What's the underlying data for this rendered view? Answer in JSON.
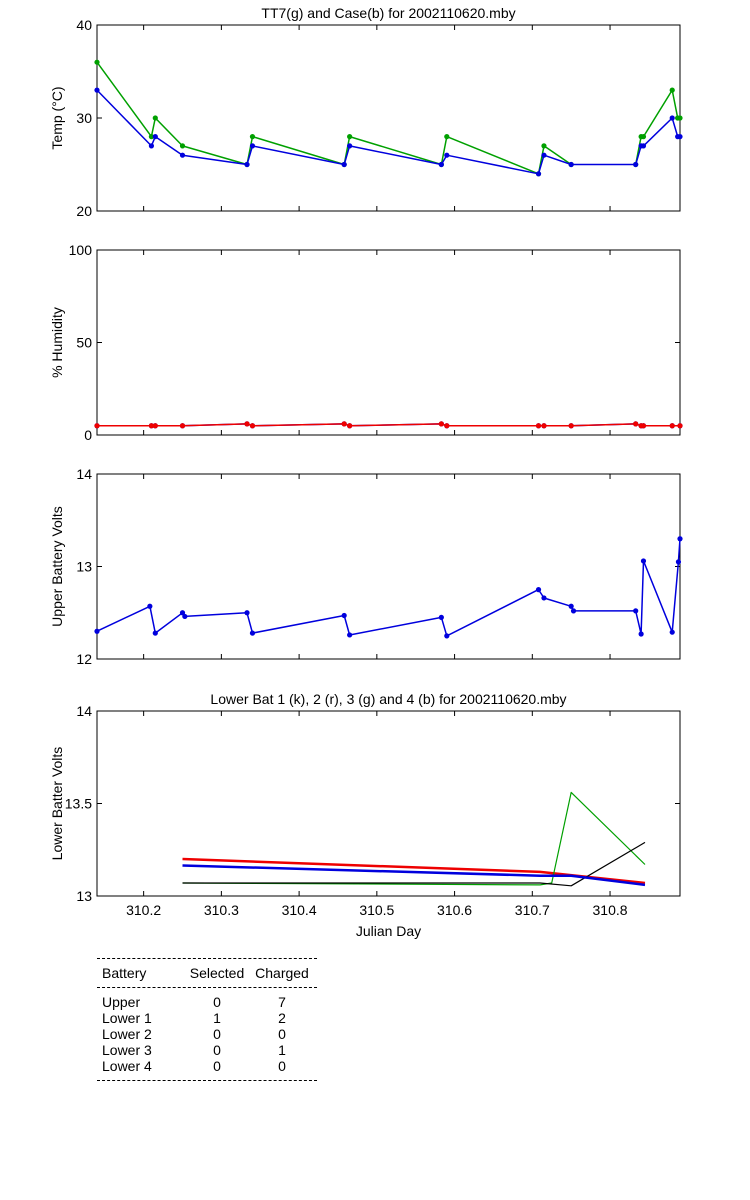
{
  "chart_data": [
    {
      "type": "line",
      "title": "TT7(g) and Case(b) for 2002110620.mby",
      "xlabel": "",
      "ylabel": "Temp  (°C)",
      "xlim": [
        310.14,
        310.89
      ],
      "ylim": [
        20,
        40
      ],
      "yticks": [
        20,
        30,
        40
      ],
      "grid": false,
      "series": [
        {
          "color": "#00a000",
          "markers": true,
          "x": [
            310.14,
            310.21,
            310.215,
            310.25,
            310.333,
            310.34,
            310.458,
            310.465,
            310.583,
            310.59,
            310.708,
            310.715,
            310.75
          ],
          "y": [
            36,
            28,
            30,
            27,
            25,
            28,
            25,
            28,
            25,
            28,
            24,
            27,
            25
          ]
        },
        {
          "color": "#00a000",
          "markers": true,
          "x": [
            310.833,
            310.84,
            310.843,
            310.88,
            310.887,
            310.89
          ],
          "y": [
            25,
            28,
            28,
            33,
            30,
            30
          ]
        },
        {
          "color": "#0000dd",
          "markers": true,
          "x": [
            310.14,
            310.21,
            310.215,
            310.25,
            310.333,
            310.34,
            310.458,
            310.465,
            310.583,
            310.59,
            310.708,
            310.715,
            310.75,
            310.833,
            310.84,
            310.843,
            310.88,
            310.887,
            310.89
          ],
          "y": [
            33,
            27,
            28,
            26,
            25,
            27,
            25,
            27,
            25,
            26,
            24,
            26,
            25,
            25,
            27,
            27,
            30,
            28,
            28
          ]
        }
      ]
    },
    {
      "type": "line",
      "title": "",
      "xlabel": "",
      "ylabel": "% Humidity",
      "xlim": [
        310.14,
        310.89
      ],
      "ylim": [
        0,
        100
      ],
      "yticks": [
        0,
        50,
        100
      ],
      "grid": false,
      "series": [
        {
          "color": "#0000dd",
          "markers": true,
          "x": [
            310.14,
            310.21,
            310.215,
            310.25,
            310.333,
            310.34,
            310.458,
            310.465,
            310.583,
            310.59,
            310.708,
            310.715,
            310.75,
            310.833,
            310.84,
            310.843,
            310.88,
            310.89
          ],
          "y": [
            5,
            5,
            5,
            5,
            6,
            5,
            6,
            5,
            6,
            5,
            5,
            5,
            5,
            6,
            5,
            5,
            5,
            5
          ]
        },
        {
          "color": "#ee0000",
          "markers": true,
          "x": [
            310.14,
            310.21,
            310.215,
            310.25,
            310.333,
            310.34,
            310.458,
            310.465,
            310.583,
            310.59,
            310.708,
            310.715,
            310.75,
            310.833,
            310.84,
            310.843,
            310.88,
            310.89
          ],
          "y": [
            5,
            5,
            5,
            5,
            6,
            5,
            6,
            5,
            6,
            5,
            5,
            5,
            5,
            6,
            5,
            5,
            5,
            5
          ]
        }
      ]
    },
    {
      "type": "line",
      "title": "",
      "xlabel": "",
      "ylabel": "Upper Battery Volts",
      "xlim": [
        310.14,
        310.89
      ],
      "ylim": [
        12,
        14
      ],
      "yticks": [
        12,
        13,
        14
      ],
      "grid": false,
      "series": [
        {
          "color": "#0000dd",
          "markers": true,
          "x": [
            310.14,
            310.208,
            310.215,
            310.25,
            310.253,
            310.333,
            310.34,
            310.458,
            310.465,
            310.583,
            310.59,
            310.708,
            310.715,
            310.75,
            310.753,
            310.833,
            310.84,
            310.843,
            310.88,
            310.888,
            310.89
          ],
          "y": [
            12.3,
            12.57,
            12.28,
            12.5,
            12.46,
            12.5,
            12.28,
            12.47,
            12.26,
            12.45,
            12.25,
            12.75,
            12.66,
            12.57,
            12.52,
            12.52,
            12.27,
            13.06,
            12.29,
            13.05,
            13.3
          ]
        }
      ]
    },
    {
      "type": "line",
      "title": "Lower Bat 1 (k), 2 (r), 3 (g) and 4 (b) for 2002110620.mby",
      "xlabel": "Julian Day",
      "ylabel": "Lower Batter Volts",
      "xlim": [
        310.14,
        310.89
      ],
      "ylim": [
        13,
        14
      ],
      "yticks": [
        13,
        13.5,
        14
      ],
      "xticks": [
        310.2,
        310.3,
        310.4,
        310.5,
        310.6,
        310.7,
        310.8
      ],
      "grid": false,
      "series": [
        {
          "color": "#ee0000",
          "markers": false,
          "width": 2.5,
          "x": [
            310.25,
            310.71,
            310.845
          ],
          "y": [
            13.2,
            13.13,
            13.07
          ]
        },
        {
          "color": "#00a000",
          "markers": false,
          "width": 1.2,
          "x": [
            310.25,
            310.71,
            310.725,
            310.75,
            310.845
          ],
          "y": [
            13.07,
            13.06,
            13.07,
            13.56,
            13.17
          ]
        },
        {
          "color": "#000000",
          "markers": false,
          "width": 1.2,
          "x": [
            310.25,
            310.71,
            310.75,
            310.845
          ],
          "y": [
            13.07,
            13.07,
            13.055,
            13.29
          ]
        },
        {
          "color": "#0000dd",
          "markers": false,
          "width": 2.5,
          "x": [
            310.25,
            310.71,
            310.75,
            310.845
          ],
          "y": [
            13.165,
            13.11,
            13.11,
            13.06
          ]
        }
      ]
    }
  ],
  "table": {
    "headers": [
      "Battery",
      "Selected",
      "Charged"
    ],
    "rows": [
      [
        "Upper",
        "0",
        "7"
      ],
      [
        "Lower 1",
        "1",
        "2"
      ],
      [
        "Lower 2",
        "0",
        "0"
      ],
      [
        "Lower 3",
        "0",
        "1"
      ],
      [
        "Lower 4",
        "0",
        "0"
      ]
    ]
  }
}
